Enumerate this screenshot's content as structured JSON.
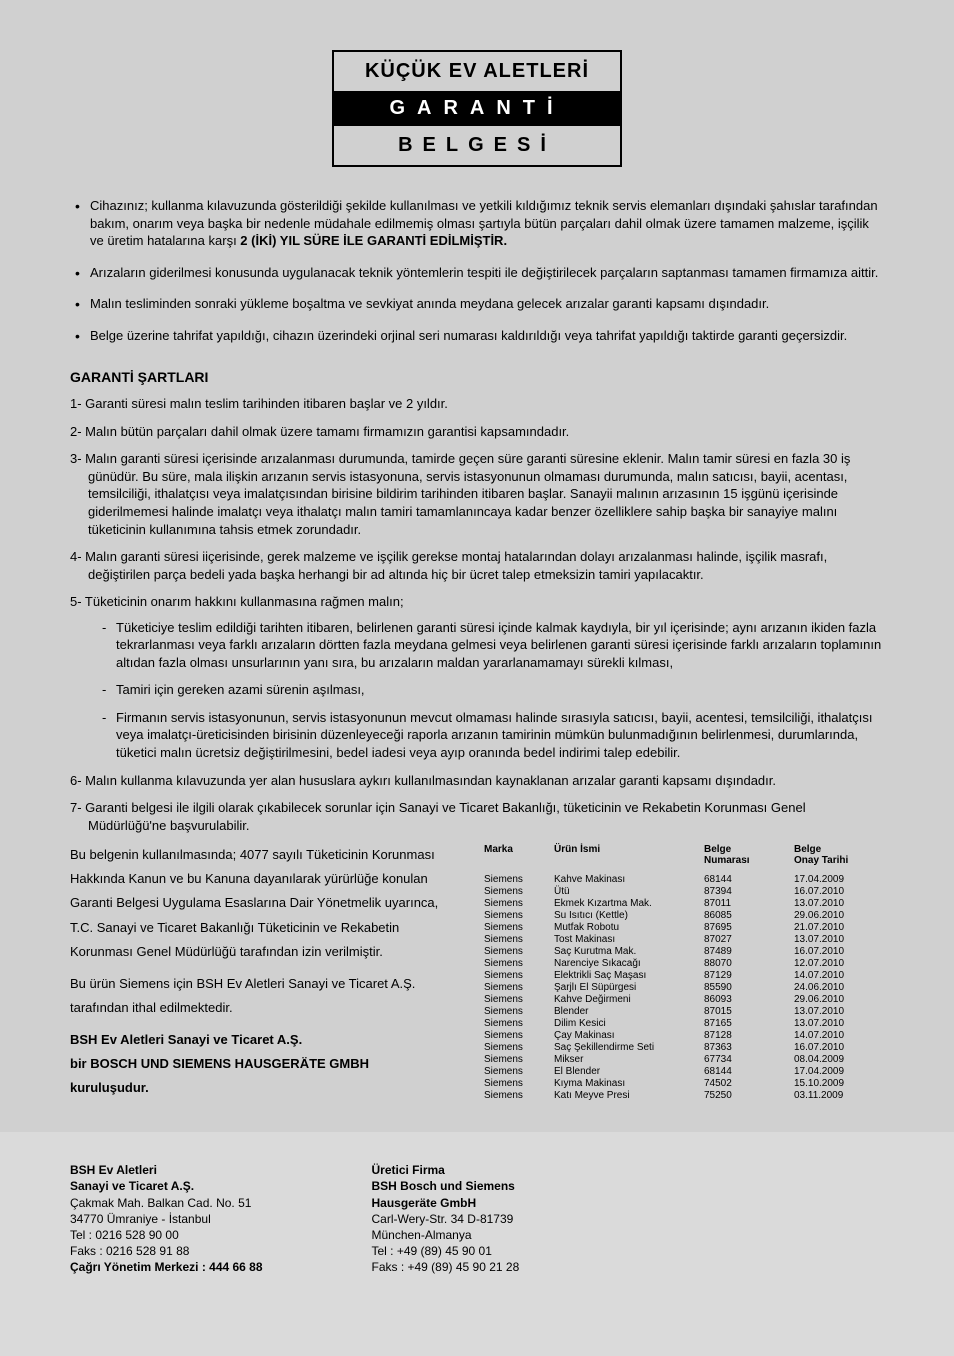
{
  "header": {
    "title": "KÜÇÜK EV ALETLERİ",
    "garanti": "GARANTİ",
    "belgesi": "BELGESİ"
  },
  "bullets": [
    {
      "text_start": "Cihazınız; kullanma kılavuzunda gösterildiği şekilde kullanılması ve yetkili kıldığımız teknik servis elemanları dışındaki şahıslar tarafından bakım, onarım veya başka bir nedenle müdahale edilmemiş olması şartıyla bütün parçaları dahil olmak üzere tamamen malzeme, işçilik ve üretim hatalarına karşı ",
      "text_bold": "2 (İKİ) YIL SÜRE İLE GARANTİ EDİLMİŞTİR."
    },
    {
      "text_start": "Arızaların giderilmesi konusunda uygulanacak teknik yöntemlerin tespiti ile değiştirilecek parçaların saptanması tamamen firmamıza aittir.",
      "text_bold": ""
    },
    {
      "text_start": "Malın tesliminden sonraki yükleme boşaltma ve sevkiyat anında meydana gelecek arızalar garanti kapsamı dışındadır.",
      "text_bold": ""
    },
    {
      "text_start": "Belge üzerine tahrifat yapıldığı, cihazın üzerindeki orjinal seri numarası kaldırıldığı veya tahrifat yapıldığı taktirde garanti geçersizdir.",
      "text_bold": ""
    }
  ],
  "section_title": "GARANTİ ŞARTLARI",
  "numbered": [
    "1- Garanti süresi malın teslim tarihinden itibaren başlar ve 2 yıldır.",
    "2- Malın bütün parçaları dahil olmak üzere tamamı firmamızın garantisi kapsamındadır.",
    "3- Malın garanti süresi içerisinde arızalanması durumunda, tamirde geçen süre garanti süresine eklenir. Malın tamir süresi en fazla 30 iş günüdür. Bu süre, mala ilişkin arızanın servis istasyonuna, servis istasyonunun olmaması durumunda, malın satıcısı, bayii, acentası, temsilciliği, ithalatçısı veya imalatçısından birisine bildirim tarihinden itibaren başlar. Sanayii malının arızasının 15 işgünü içerisinde giderilmemesi halinde imalatçı veya ithalatçı malın tamiri tamamlanıncaya kadar benzer özelliklere sahip başka bir sanayiye malını tüketicinin kullanımına tahsis etmek zorundadır.",
    "4- Malın garanti süresi iiçerisinde, gerek malzeme ve işçilik gerekse montaj hatalarından dolayı arızalanması halinde, işçilik masrafı, değiştirilen parça bedeli yada başka herhangi bir ad altında hiç bir ücret talep etmeksizin tamiri yapılacaktır."
  ],
  "item5_intro": "5- Tüketicinin onarım hakkını kullanmasına rağmen malın;",
  "item5_subs": [
    "Tüketiciye teslim edildiği tarihten itibaren, belirlenen garanti süresi içinde kalmak kaydıyla, bir yıl içerisinde; aynı arızanın ikiden fazla tekrarlanması veya farklı arızaların dörtten fazla meydana gelmesi veya belirlenen garanti süresi içerisinde farklı arızaların toplamının altıdan fazla olması unsurlarının yanı sıra, bu arızaların maldan yararlanamamayı sürekli kılması,",
    "Tamiri için gereken azami sürenin aşılması,",
    "Firmanın servis istasyonunun, servis istasyonunun mevcut olmaması halinde sırasıyla satıcısı, bayii, acentesi, temsilciliği, ithalatçısı veya imalatçı-üreticisinden birisinin düzenleyeceği raporla arızanın tamirinin mümkün bulunmadığının belirlenmesi, durumlarında, tüketici malın ücretsiz değiştirilmesini, bedel iadesi veya ayıp oranında bedel indirimi talep edebilir."
  ],
  "numbered_rest": [
    "6- Malın kullanma kılavuzunda yer alan hususlara aykırı kullanılmasından kaynaklanan arızalar garanti kapsamı dışındadır.",
    "7- Garanti belgesi ile ilgili olarak çıkabilecek sorunlar için Sanayi ve Ticaret Bakanlığı, tüketicinin ve Rekabetin Korunması Genel  Müdürlüğü'ne başvurulabilir."
  ],
  "left_text": {
    "p1": "Bu belgenin kullanılmasında; 4077 sayılı Tüketicinin Korunması",
    "p2": "Hakkında Kanun ve bu Kanuna dayanılarak yürürlüğe konulan",
    "p3": "Garanti Belgesi Uygulama Esaslarına Dair Yönetmelik uyarınca,",
    "p4": "T.C. Sanayi ve Ticaret Bakanlığı Tüketicinin ve Rekabetin",
    "p5": "Korunması Genel Müdürlüğü tarafından izin verilmiştir.",
    "p6": "Bu ürün Siemens için BSH Ev Aletleri Sanayi ve Ticaret  A.Ş.",
    "p7": "tarafından ithal edilmektedir.",
    "p8": "BSH Ev Aletleri Sanayi ve Ticaret  A.Ş.",
    "p9": "bir  BOSCH UND SIEMENS HAUSGERÄTE GMBH",
    "p10": "kuruluşudur."
  },
  "table_headers": {
    "marka": "Marka",
    "urun": "Ürün İsmi",
    "belge": "Belge Numarası",
    "tarih": "Belge Onay Tarihi"
  },
  "products": [
    {
      "marka": "Siemens",
      "urun": "Kahve Makinası",
      "belge": "68144",
      "tarih": "17.04.2009"
    },
    {
      "marka": "Siemens",
      "urun": "Ütü",
      "belge": "87394",
      "tarih": "16.07.2010"
    },
    {
      "marka": "Siemens",
      "urun": "Ekmek Kızartma Mak.",
      "belge": "87011",
      "tarih": "13.07.2010"
    },
    {
      "marka": "Siemens",
      "urun": "Su Isıtıcı (Kettle)",
      "belge": "86085",
      "tarih": "29.06.2010"
    },
    {
      "marka": "Siemens",
      "urun": "Mutfak Robotu",
      "belge": "87695",
      "tarih": "21.07.2010"
    },
    {
      "marka": "Siemens",
      "urun": "Tost Makinası",
      "belge": "87027",
      "tarih": "13.07.2010"
    },
    {
      "marka": "Siemens",
      "urun": "Saç Kurutma Mak.",
      "belge": "87489",
      "tarih": "16.07.2010"
    },
    {
      "marka": "Siemens",
      "urun": "Narenciye Sıkacağı",
      "belge": "88070",
      "tarih": "12.07.2010"
    },
    {
      "marka": "Siemens",
      "urun": "Elektrikli Saç Maşası",
      "belge": "87129",
      "tarih": "14.07.2010"
    },
    {
      "marka": "Siemens",
      "urun": "Şarjlı El Süpürgesi",
      "belge": "85590",
      "tarih": "24.06.2010"
    },
    {
      "marka": "Siemens",
      "urun": "Kahve Değirmeni",
      "belge": "86093",
      "tarih": "29.06.2010"
    },
    {
      "marka": "Siemens",
      "urun": "Blender",
      "belge": "87015",
      "tarih": "13.07.2010"
    },
    {
      "marka": "Siemens",
      "urun": "Dilim Kesici",
      "belge": "87165",
      "tarih": "13.07.2010"
    },
    {
      "marka": "Siemens",
      "urun": "Çay Makinası",
      "belge": "87128",
      "tarih": "14.07.2010"
    },
    {
      "marka": "Siemens",
      "urun": "Saç Şekillendirme Seti",
      "belge": "87363",
      "tarih": "16.07.2010"
    },
    {
      "marka": "Siemens",
      "urun": "Mikser",
      "belge": "67734",
      "tarih": "08.04.2009"
    },
    {
      "marka": "Siemens",
      "urun": "El Blender",
      "belge": "68144",
      "tarih": "17.04.2009"
    },
    {
      "marka": "Siemens",
      "urun": "Kıyma Makinası",
      "belge": "74502",
      "tarih": "15.10.2009"
    },
    {
      "marka": "Siemens",
      "urun": "Katı Meyve Presi",
      "belge": "75250",
      "tarih": "03.11.2009"
    }
  ],
  "footer": {
    "left": {
      "l1": "BSH Ev Aletleri",
      "l2": "Sanayi ve Ticaret A.Ş.",
      "l3": "Çakmak Mah. Balkan Cad. No. 51",
      "l4": "34770 Ümraniye -  İstanbul",
      "l5": "Tel : 0216 528 90 00",
      "l6": "Faks : 0216 528 91 88",
      "l7": "Çağrı Yönetim Merkezi : 444 66 88"
    },
    "right": {
      "l1": "Üretici Firma",
      "l2": "BSH Bosch und Siemens",
      "l3": "Hausgeräte GmbH",
      "l4": "Carl-Wery-Str. 34 D-81739",
      "l5": "München-Almanya",
      "l6": "Tel : +49 (89) 45 90 01",
      "l7": "Faks : +49 (89) 45 90 21 28"
    }
  }
}
